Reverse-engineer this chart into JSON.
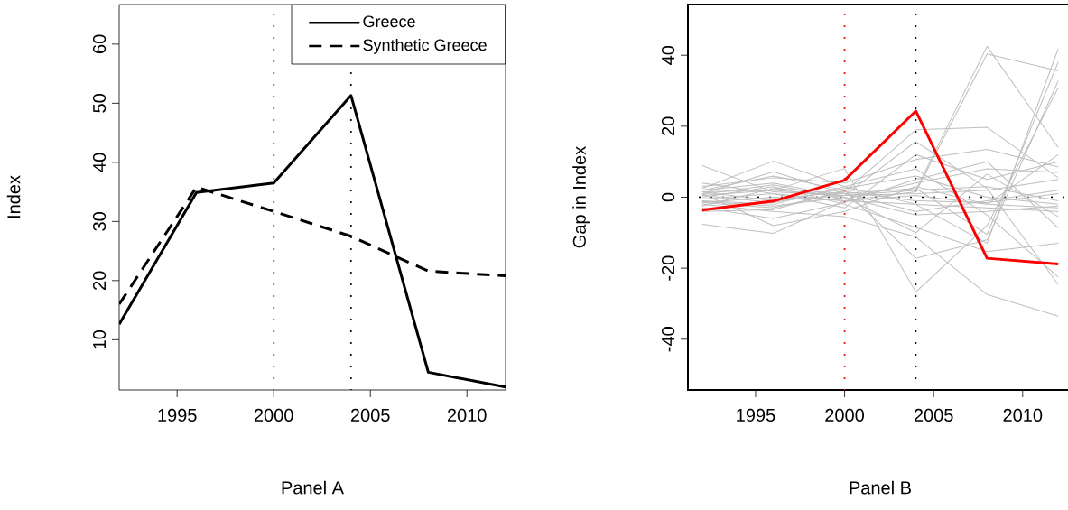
{
  "chart_data": [
    {
      "type": "line",
      "xlabel": "Panel A",
      "ylabel": "Index",
      "x": [
        1992,
        1996,
        2000,
        2004,
        2008,
        2012
      ],
      "xlim": [
        1992,
        2012
      ],
      "ylim": [
        1.5,
        66.7
      ],
      "xticks": [
        1995,
        2000,
        2005,
        2010
      ],
      "yticks": [
        10,
        20,
        30,
        40,
        50,
        60
      ],
      "legend": "top right",
      "grid": false,
      "series": [
        {
          "name": "Greece",
          "color": "#000000",
          "line_style": "solid",
          "values": [
            12.6,
            34.9,
            36.5,
            51.3,
            4.5,
            2.0
          ]
        },
        {
          "name": "Synthetic Greece",
          "color": "#000000",
          "line_style": "dashed",
          "values": [
            16.0,
            35.8,
            31.7,
            27.5,
            21.6,
            20.8
          ]
        }
      ],
      "ref_lines": [
        {
          "axis": "x",
          "value": 2000,
          "color": "#ff0000",
          "line_style": "dotted"
        },
        {
          "axis": "x",
          "value": 2004,
          "color": "#000000",
          "line_style": "dotted"
        }
      ]
    },
    {
      "type": "line",
      "xlabel": "Panel B",
      "ylabel": "Gap in Index",
      "x": [
        1992,
        1996,
        2000,
        2004,
        2008,
        2012
      ],
      "xlim": [
        1991.2,
        2012.8
      ],
      "ylim": [
        -54.3,
        54.3
      ],
      "xticks": [
        1995,
        2000,
        2005,
        2010
      ],
      "yticks": [
        -40,
        -20,
        0,
        20,
        40
      ],
      "grid": false,
      "series": [
        {
          "color": "#bebebe",
          "values": [
            8.9,
            1.5,
            0.5,
            2.0,
            42.5,
            14.0
          ]
        },
        {
          "color": "#bebebe",
          "values": [
            -7.6,
            -10.2,
            -1.0,
            1.5,
            40.4,
            35.6
          ]
        },
        {
          "color": "#bebebe",
          "values": [
            2.5,
            10.2,
            3.0,
            -2.0,
            -13.0,
            41.9
          ]
        },
        {
          "color": "#bebebe",
          "values": [
            1.0,
            7.2,
            1.0,
            2.5,
            -10.5,
            38.1
          ]
        },
        {
          "color": "#bebebe",
          "values": [
            -1.5,
            -3.0,
            1.5,
            19.0,
            19.7,
            5.5
          ]
        },
        {
          "color": "#bebebe",
          "values": [
            0.5,
            2.0,
            8.1,
            -26.7,
            -8.0,
            30.9
          ]
        },
        {
          "color": "#bebebe",
          "values": [
            2.0,
            6.0,
            2.0,
            -17.2,
            -12.0,
            32.8
          ]
        },
        {
          "color": "#bebebe",
          "values": [
            -2.0,
            -4.0,
            -5.5,
            -11.2,
            -27.4,
            -33.5
          ]
        },
        {
          "color": "#bebebe",
          "values": [
            3.0,
            5.5,
            4.0,
            10.6,
            13.5,
            8.5
          ]
        },
        {
          "color": "#bebebe",
          "values": [
            1.5,
            -1.0,
            0.5,
            15.7,
            2.5,
            -24.6
          ]
        },
        {
          "color": "#bebebe",
          "values": [
            -1.0,
            -2.0,
            3.0,
            8.0,
            -5.0,
            -22.5
          ]
        },
        {
          "color": "#bebebe",
          "values": [
            0.0,
            3.0,
            -2.0,
            -8.5,
            -15.3,
            -13.0
          ]
        },
        {
          "color": "#bebebe",
          "values": [
            -3.0,
            -6.0,
            -1.5,
            5.0,
            10.0,
            -8.7
          ]
        },
        {
          "color": "#bebebe",
          "values": [
            2.0,
            4.0,
            0.0,
            -10.0,
            6.5,
            -5.5
          ]
        },
        {
          "color": "#bebebe",
          "values": [
            -0.5,
            1.0,
            -3.0,
            12.0,
            5.0,
            10.0
          ]
        },
        {
          "color": "#bebebe",
          "values": [
            1.0,
            -8.0,
            -4.0,
            3.0,
            -2.0,
            12.0
          ]
        },
        {
          "color": "#bebebe",
          "values": [
            -2.5,
            2.5,
            1.0,
            -4.0,
            -1.0,
            2.0
          ]
        },
        {
          "color": "#bebebe",
          "values": [
            0.5,
            -1.5,
            2.5,
            6.0,
            0.0,
            -2.0
          ]
        },
        {
          "color": "#bebebe",
          "values": [
            -1.5,
            0.0,
            -1.0,
            -2.0,
            -3.0,
            -4.0
          ]
        },
        {
          "color": "#bebebe",
          "values": [
            1.5,
            2.0,
            0.5,
            1.0,
            2.0,
            5.0
          ]
        },
        {
          "color": "#bebebe",
          "values": [
            -0.5,
            -0.5,
            1.5,
            -1.0,
            -1.5,
            1.0
          ]
        },
        {
          "color": "#bebebe",
          "values": [
            0.8,
            3.5,
            -0.5,
            4.0,
            8.0,
            7.0
          ]
        },
        {
          "color": "#bebebe",
          "values": [
            -1.2,
            -2.5,
            0.0,
            -5.0,
            -4.0,
            -2.5
          ]
        },
        {
          "color": "#bebebe",
          "values": [
            4.0,
            1.0,
            -1.0,
            0.5,
            -2.0,
            -3.0
          ]
        },
        {
          "color": "#bebebe",
          "values": [
            -4.0,
            -3.5,
            2.0,
            2.0,
            3.0,
            -1.0
          ]
        },
        {
          "color": "#ff0000",
          "values": [
            -3.6,
            -1.1,
            4.8,
            24.3,
            -17.2,
            -18.8
          ]
        }
      ],
      "ref_lines": [
        {
          "axis": "x",
          "value": 2000,
          "color": "#ff0000",
          "line_style": "dotted"
        },
        {
          "axis": "x",
          "value": 2004,
          "color": "#000000",
          "line_style": "dotted"
        },
        {
          "axis": "y",
          "value": 0,
          "color": "#000000",
          "line_style": "dotted"
        }
      ]
    }
  ]
}
